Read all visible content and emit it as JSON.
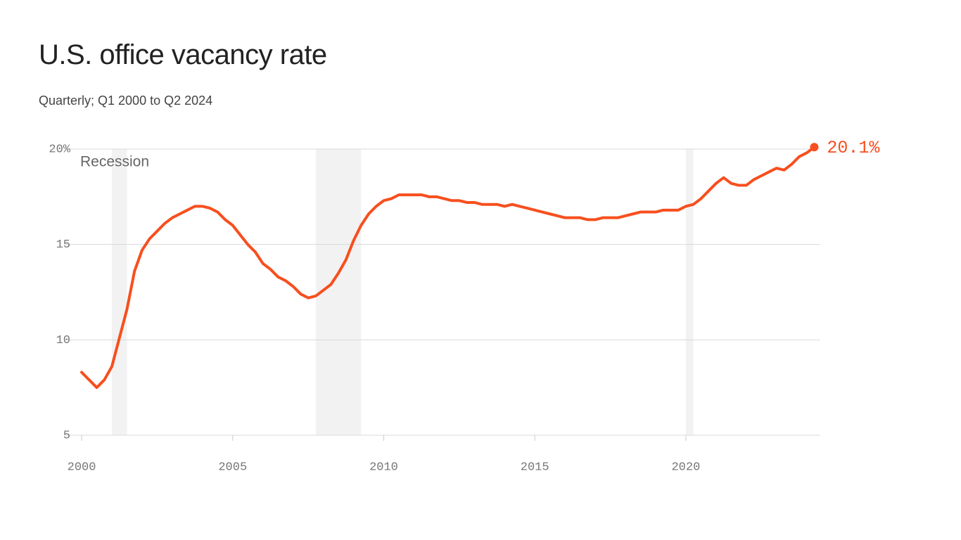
{
  "chart_data": {
    "type": "line",
    "title": "U.S. office vacancy rate",
    "subtitle": "Quarterly; Q1 2000 to Q2 2024",
    "x": [
      2000,
      2000.25,
      2000.5,
      2000.75,
      2001,
      2001.25,
      2001.5,
      2001.75,
      2002,
      2002.25,
      2002.5,
      2002.75,
      2003,
      2003.25,
      2003.5,
      2003.75,
      2004,
      2004.25,
      2004.5,
      2004.75,
      2005,
      2005.25,
      2005.5,
      2005.75,
      2006,
      2006.25,
      2006.5,
      2006.75,
      2007,
      2007.25,
      2007.5,
      2007.75,
      2008,
      2008.25,
      2008.5,
      2008.75,
      2009,
      2009.25,
      2009.5,
      2009.75,
      2010,
      2010.25,
      2010.5,
      2010.75,
      2011,
      2011.25,
      2011.5,
      2011.75,
      2012,
      2012.25,
      2012.5,
      2012.75,
      2013,
      2013.25,
      2013.5,
      2013.75,
      2014,
      2014.25,
      2014.5,
      2014.75,
      2015,
      2015.25,
      2015.5,
      2015.75,
      2016,
      2016.25,
      2016.5,
      2016.75,
      2017,
      2017.25,
      2017.5,
      2017.75,
      2018,
      2018.25,
      2018.5,
      2018.75,
      2019,
      2019.25,
      2019.5,
      2019.75,
      2020,
      2020.25,
      2020.5,
      2020.75,
      2021,
      2021.25,
      2021.5,
      2021.75,
      2022,
      2022.25,
      2022.5,
      2022.75,
      2023,
      2023.25,
      2023.5,
      2023.75,
      2024,
      2024.25
    ],
    "series": [
      {
        "color": "#f74f1e",
        "values": [
          8.3,
          7.9,
          7.5,
          7.9,
          8.6,
          10.1,
          11.6,
          13.6,
          14.7,
          15.3,
          15.7,
          16.1,
          16.4,
          16.6,
          16.8,
          17.0,
          17.0,
          16.9,
          16.7,
          16.3,
          16.0,
          15.5,
          15.0,
          14.6,
          14.0,
          13.7,
          13.3,
          13.1,
          12.8,
          12.4,
          12.2,
          12.3,
          12.6,
          12.9,
          13.5,
          14.2,
          15.2,
          16.0,
          16.6,
          17.0,
          17.3,
          17.4,
          17.6,
          17.6,
          17.6,
          17.6,
          17.5,
          17.5,
          17.4,
          17.3,
          17.3,
          17.2,
          17.2,
          17.1,
          17.1,
          17.1,
          17.0,
          17.1,
          17.0,
          16.9,
          16.8,
          16.7,
          16.6,
          16.5,
          16.4,
          16.4,
          16.4,
          16.3,
          16.3,
          16.4,
          16.4,
          16.4,
          16.5,
          16.6,
          16.7,
          16.7,
          16.7,
          16.8,
          16.8,
          16.8,
          17.0,
          17.1,
          17.4,
          17.8,
          18.2,
          18.5,
          18.2,
          18.1,
          18.1,
          18.4,
          18.6,
          18.8,
          19.0,
          18.9,
          19.2,
          19.6,
          19.8,
          20.1
        ],
        "value_labels": [
          null,
          null,
          null,
          null,
          null,
          null,
          null,
          null,
          null,
          null,
          null,
          null,
          null,
          null,
          null,
          null,
          null,
          null,
          null,
          null,
          null,
          null,
          null,
          null,
          null,
          null,
          null,
          null,
          null,
          null,
          null,
          null,
          null,
          null,
          null,
          null,
          null,
          null,
          null,
          null,
          null,
          null,
          null,
          null,
          null,
          null,
          null,
          null,
          null,
          null,
          null,
          null,
          null,
          null,
          null,
          null,
          null,
          null,
          null,
          null,
          null,
          null,
          null,
          null,
          null,
          null,
          null,
          null,
          null,
          null,
          null,
          null,
          null,
          null,
          null,
          null,
          null,
          null,
          null,
          null,
          null,
          null,
          null,
          null,
          null,
          null,
          null,
          null,
          null,
          null,
          null,
          null,
          null,
          null,
          null,
          null,
          null,
          "20.1%"
        ]
      }
    ],
    "recession_label": "Recession",
    "recessions": [
      [
        2001,
        2001.5
      ],
      [
        2007.75,
        2009.25
      ],
      [
        2020,
        2020.25
      ]
    ],
    "recession_color": "#f2f2f2",
    "xlim": [
      1999.44,
      2024.45
    ],
    "ylim": [
      5,
      20
    ],
    "xticks": [
      2000,
      2005,
      2010,
      2015,
      2020
    ],
    "yticks": [
      5,
      10,
      15,
      {
        "value": 20,
        "label": "20%"
      }
    ],
    "grid": true
  }
}
